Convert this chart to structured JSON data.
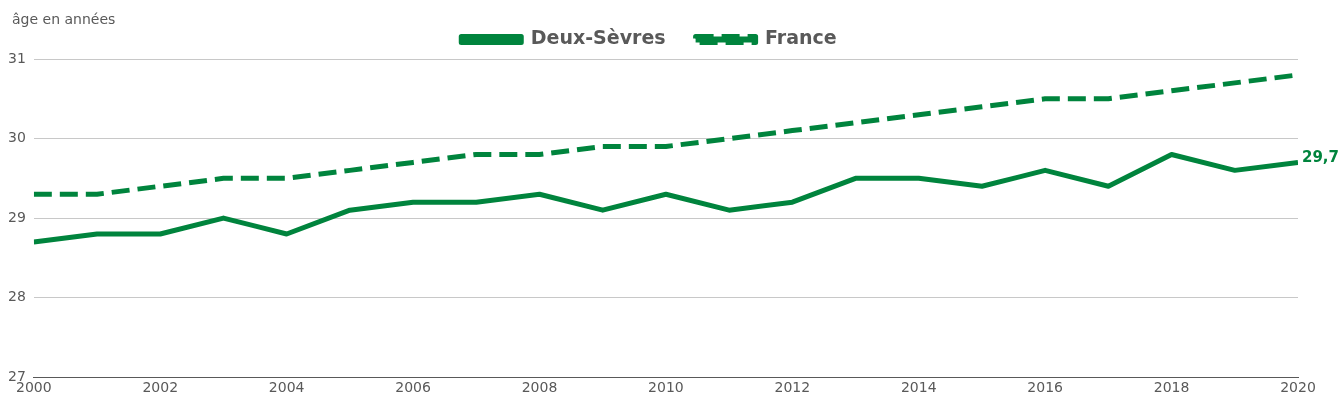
{
  "chart_data": {
    "type": "line",
    "ylabel": "âge en années",
    "x": [
      2000,
      2001,
      2002,
      2003,
      2004,
      2005,
      2006,
      2007,
      2008,
      2009,
      2010,
      2011,
      2012,
      2013,
      2014,
      2015,
      2016,
      2017,
      2018,
      2019,
      2020
    ],
    "series": [
      {
        "name": "Deux-Sèvres",
        "color": "#00843d",
        "line_style": "solid",
        "values": [
          28.7,
          28.8,
          28.8,
          29.0,
          28.8,
          29.1,
          29.2,
          29.2,
          29.3,
          29.1,
          29.3,
          29.1,
          29.2,
          29.5,
          29.5,
          29.4,
          29.6,
          29.4,
          29.8,
          29.6,
          29.7
        ],
        "value_labels": [
          null,
          null,
          null,
          null,
          null,
          null,
          null,
          null,
          null,
          null,
          null,
          null,
          null,
          null,
          null,
          null,
          null,
          null,
          null,
          null,
          "29,7"
        ]
      },
      {
        "name": "France",
        "color": "#00843d",
        "line_style": "dashed",
        "values": [
          29.3,
          29.3,
          29.4,
          29.5,
          29.5,
          29.6,
          29.7,
          29.8,
          29.8,
          29.9,
          29.9,
          30.0,
          30.1,
          30.2,
          30.3,
          30.4,
          30.5,
          30.5,
          30.6,
          30.7,
          30.8
        ]
      }
    ],
    "xlim": [
      2000,
      2020
    ],
    "xticks": [
      2000,
      2002,
      2004,
      2006,
      2008,
      2010,
      2012,
      2014,
      2016,
      2018,
      2020
    ],
    "ylim": [
      27,
      31
    ],
    "yticks": [
      27,
      28,
      29,
      30,
      31
    ],
    "grid": "y",
    "legend": "top",
    "marker": "none"
  }
}
